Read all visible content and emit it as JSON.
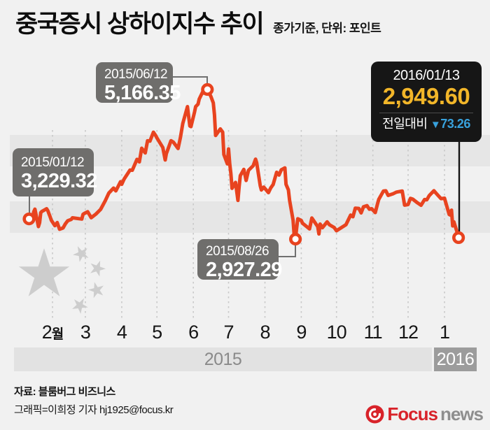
{
  "header": {
    "title": "중국증시 상하이지수 추이",
    "subtitle": "종가기준, 단위: 포인트"
  },
  "callouts": {
    "start": {
      "date": "2015/01/12",
      "value": "3,229.32"
    },
    "peak": {
      "date": "2015/06/12",
      "value": "5,166.35"
    },
    "low": {
      "date": "2015/08/26",
      "value": "2,927.29"
    },
    "latest": {
      "date": "2016/01/13",
      "value": "2,949.60",
      "change_label": "전일대비",
      "change_arrow": "▼",
      "change_value": "73.26"
    }
  },
  "axis": {
    "years": [
      "2015",
      "2016"
    ]
  },
  "footer": {
    "source": "자료: 블룸버그 비즈니스",
    "credit": "그래픽=이희정 기자 hj1925@focus.kr",
    "logo_brand": "Focus",
    "logo_suffix": "news"
  },
  "colors": {
    "line_red": "#e8431f",
    "callout_gray": "#6f6e6c",
    "callout_black": "#161616",
    "value_gold": "#f2b629",
    "change_blue": "#38a1dc",
    "band_gray": "#e6e6e6",
    "grid_gray": "#c9c9c9",
    "star_gray": "#cdcdcd",
    "logo_red": "#d8232a",
    "logo_news_gray": "#8e8e8e"
  },
  "chart_data": {
    "type": "line",
    "title": "중국증시 상하이지수 추이",
    "basis": "종가기준",
    "unit": "포인트",
    "legend": "none",
    "grid": "vertical-dashed-monthly",
    "x_axis": {
      "month_labels": [
        "2월",
        "3",
        "4",
        "5",
        "6",
        "7",
        "8",
        "9",
        "10",
        "11",
        "12",
        "1"
      ],
      "month_start_days": [
        31,
        59,
        90,
        120,
        151,
        181,
        212,
        243,
        273,
        304,
        334,
        365
      ],
      "range_days": [
        11,
        377
      ]
    },
    "y_axis": {
      "visible": false,
      "approx_range": [
        2900,
        5200
      ]
    },
    "annotations": [
      {
        "date": "2015/01/12",
        "day": 11,
        "value": 3229.32
      },
      {
        "date": "2015/06/12",
        "day": 163,
        "value": 5166.35
      },
      {
        "date": "2015/08/26",
        "day": 238,
        "value": 2927.29
      },
      {
        "date": "2016/01/13",
        "day": 377,
        "value": 2949.6
      }
    ],
    "series": [
      {
        "name": "상하이종합지수(종가)",
        "points": [
          [
            11,
            3229
          ],
          [
            12,
            3236
          ],
          [
            13,
            3222
          ],
          [
            14,
            3236
          ],
          [
            15,
            3336
          ],
          [
            16,
            3376
          ],
          [
            19,
            3116
          ],
          [
            20,
            3173
          ],
          [
            21,
            3323
          ],
          [
            22,
            3343
          ],
          [
            23,
            3352
          ],
          [
            26,
            3383
          ],
          [
            27,
            3353
          ],
          [
            28,
            3305
          ],
          [
            29,
            3262
          ],
          [
            30,
            3210
          ],
          [
            33,
            3128
          ],
          [
            35,
            3175
          ],
          [
            37,
            3075
          ],
          [
            40,
            3095
          ],
          [
            42,
            3157
          ],
          [
            44,
            3203
          ],
          [
            47,
            3222
          ],
          [
            48,
            3246
          ],
          [
            56,
            3228
          ],
          [
            57,
            3298
          ],
          [
            58,
            3310
          ],
          [
            61,
            3336
          ],
          [
            64,
            3248
          ],
          [
            68,
            3302
          ],
          [
            72,
            3372
          ],
          [
            76,
            3502
          ],
          [
            79,
            3617
          ],
          [
            83,
            3691
          ],
          [
            85,
            3649
          ],
          [
            89,
            3786
          ],
          [
            90,
            3748
          ],
          [
            92,
            3826
          ],
          [
            97,
            3961
          ],
          [
            99,
            3958
          ],
          [
            103,
            4121
          ],
          [
            105,
            4084
          ],
          [
            107,
            4287
          ],
          [
            110,
            4217
          ],
          [
            112,
            4398
          ],
          [
            114,
            4394
          ],
          [
            117,
            4527
          ],
          [
            119,
            4476
          ],
          [
            120,
            4441
          ],
          [
            125,
            4298
          ],
          [
            127,
            4112
          ],
          [
            128,
            4205
          ],
          [
            132,
            4401
          ],
          [
            134,
            4378
          ],
          [
            138,
            4283
          ],
          [
            140,
            4446
          ],
          [
            142,
            4657
          ],
          [
            146,
            4910
          ],
          [
            148,
            4620
          ],
          [
            149,
            4611
          ],
          [
            152,
            4828
          ],
          [
            153,
            4910
          ],
          [
            155,
            4947
          ],
          [
            156,
            5023
          ],
          [
            159,
            5132
          ],
          [
            160,
            5113
          ],
          [
            163,
            5166.35
          ],
          [
            166,
            5062
          ],
          [
            168,
            4967
          ],
          [
            169,
            4785
          ],
          [
            170,
            4478
          ],
          [
            174,
            4576
          ],
          [
            176,
            4528
          ],
          [
            177,
            4193
          ],
          [
            180,
            4053
          ],
          [
            181,
            4277
          ],
          [
            182,
            4054
          ],
          [
            183,
            3912
          ],
          [
            184,
            3687
          ],
          [
            187,
            3776
          ],
          [
            189,
            3507
          ],
          [
            190,
            3709
          ],
          [
            191,
            3877
          ],
          [
            194,
            3970
          ],
          [
            196,
            3805
          ],
          [
            198,
            3957
          ],
          [
            202,
            4026
          ],
          [
            204,
            4124
          ],
          [
            205,
            4071
          ],
          [
            208,
            3726
          ],
          [
            209,
            3663
          ],
          [
            211,
            3706
          ],
          [
            215,
            3623
          ],
          [
            217,
            3694
          ],
          [
            219,
            3744
          ],
          [
            222,
            3928
          ],
          [
            224,
            3886
          ],
          [
            226,
            3965
          ],
          [
            229,
            3994
          ],
          [
            230,
            3748
          ],
          [
            232,
            3664
          ],
          [
            233,
            3508
          ],
          [
            236,
            3210
          ],
          [
            237,
            2965
          ],
          [
            238,
            2927.29
          ],
          [
            239,
            3084
          ],
          [
            240,
            3232
          ],
          [
            243,
            3206
          ],
          [
            244,
            3166
          ],
          [
            250,
            3080
          ],
          [
            252,
            3243
          ],
          [
            257,
            3115
          ],
          [
            258,
            3005
          ],
          [
            259,
            3152
          ],
          [
            261,
            3098
          ],
          [
            265,
            3186
          ],
          [
            267,
            3142
          ],
          [
            271,
            3101
          ],
          [
            273,
            3053
          ],
          [
            281,
            3143
          ],
          [
            285,
            3287
          ],
          [
            287,
            3262
          ],
          [
            289,
            3391
          ],
          [
            292,
            3387
          ],
          [
            294,
            3320
          ],
          [
            296,
            3412
          ],
          [
            299,
            3429
          ],
          [
            301,
            3375
          ],
          [
            303,
            3383
          ],
          [
            306,
            3325
          ],
          [
            308,
            3459
          ],
          [
            309,
            3523
          ],
          [
            313,
            3647
          ],
          [
            315,
            3650
          ],
          [
            317,
            3581
          ],
          [
            321,
            3604
          ],
          [
            324,
            3630
          ],
          [
            329,
            3647
          ],
          [
            331,
            3436
          ],
          [
            334,
            3445
          ],
          [
            336,
            3537
          ],
          [
            338,
            3525
          ],
          [
            342,
            3470
          ],
          [
            345,
            3434
          ],
          [
            348,
            3520
          ],
          [
            350,
            3516
          ],
          [
            352,
            3579
          ],
          [
            356,
            3651
          ],
          [
            358,
            3612
          ],
          [
            362,
            3533
          ],
          [
            365,
            3539
          ],
          [
            369,
            3296
          ],
          [
            370,
            3287
          ],
          [
            371,
            3361
          ],
          [
            372,
            3125
          ],
          [
            373,
            3186
          ],
          [
            376,
            3017
          ],
          [
            377,
            2949.6
          ]
        ]
      }
    ]
  }
}
